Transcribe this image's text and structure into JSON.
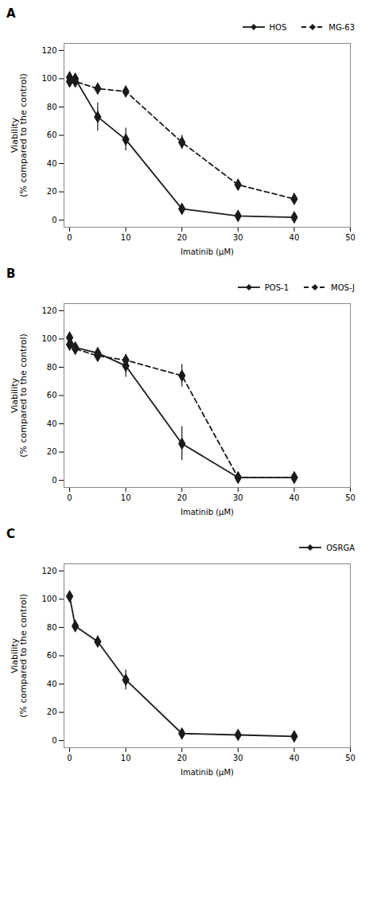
{
  "chart_data": [
    {
      "type": "line",
      "title": "A",
      "x": [
        0,
        1,
        5,
        10,
        20,
        30,
        40
      ],
      "series": [
        {
          "name": "HOS",
          "color": "#1a1a1a",
          "line_style": "solid",
          "marker": "diamond",
          "values": [
            101,
            100,
            73,
            57,
            8,
            3,
            2
          ],
          "yerr": [
            2,
            2,
            10,
            8,
            2,
            1,
            1
          ]
        },
        {
          "name": "MG-63",
          "color": "#1a1a1a",
          "line_style": "dashed",
          "marker": "diamond",
          "values": [
            98,
            98,
            93,
            91,
            55,
            25,
            15
          ],
          "yerr": [
            2,
            2,
            3,
            3,
            5,
            3,
            3
          ]
        }
      ],
      "xlabel": "Imatinib (μM)",
      "ylabel": "Viability\n(% compared to the control)",
      "xlim": [
        -1,
        50
      ],
      "ylim": [
        -5,
        125
      ],
      "xticks": [
        0,
        10,
        20,
        30,
        40,
        50
      ],
      "yticks": [
        0,
        20,
        40,
        60,
        80,
        100,
        120
      ],
      "grid": false,
      "legend": "right"
    },
    {
      "type": "line",
      "title": "B",
      "x": [
        0,
        1,
        5,
        10,
        20,
        30,
        40
      ],
      "series": [
        {
          "name": "POS-1",
          "color": "#1a1a1a",
          "line_style": "solid",
          "marker": "diamond",
          "values": [
            101,
            94,
            90,
            81,
            26,
            2,
            2
          ],
          "yerr": [
            2,
            2,
            2,
            8,
            12,
            1,
            1
          ]
        },
        {
          "name": "MOS-J",
          "color": "#1a1a1a",
          "line_style": "dashed",
          "marker": "diamond",
          "values": [
            96,
            93,
            88,
            85,
            74,
            2,
            2
          ],
          "yerr": [
            2,
            3,
            3,
            4,
            8,
            1,
            1
          ]
        }
      ],
      "xlabel": "Imatinib (μM)",
      "ylabel": "Viability\n(% compared to the control)",
      "xlim": [
        -1,
        50
      ],
      "ylim": [
        -5,
        125
      ],
      "xticks": [
        0,
        10,
        20,
        30,
        40,
        50
      ],
      "yticks": [
        0,
        20,
        40,
        60,
        80,
        100,
        120
      ],
      "grid": false,
      "legend": "right"
    },
    {
      "type": "line",
      "title": "C",
      "x": [
        0,
        1,
        5,
        10,
        20,
        30,
        40
      ],
      "series": [
        {
          "name": "OSRGA",
          "color": "#1a1a1a",
          "line_style": "solid",
          "marker": "diamond",
          "values": [
            102,
            81,
            70,
            43,
            5,
            4,
            3
          ],
          "yerr": [
            2,
            4,
            4,
            7,
            2,
            2,
            2
          ]
        }
      ],
      "xlabel": "Imatinib (μM)",
      "ylabel": "Viability\n(% compared to the control)",
      "xlim": [
        -1,
        50
      ],
      "ylim": [
        -5,
        125
      ],
      "xticks": [
        0,
        10,
        20,
        30,
        40,
        50
      ],
      "yticks": [
        0,
        20,
        40,
        60,
        80,
        100,
        120
      ],
      "grid": false,
      "legend": "right"
    }
  ]
}
